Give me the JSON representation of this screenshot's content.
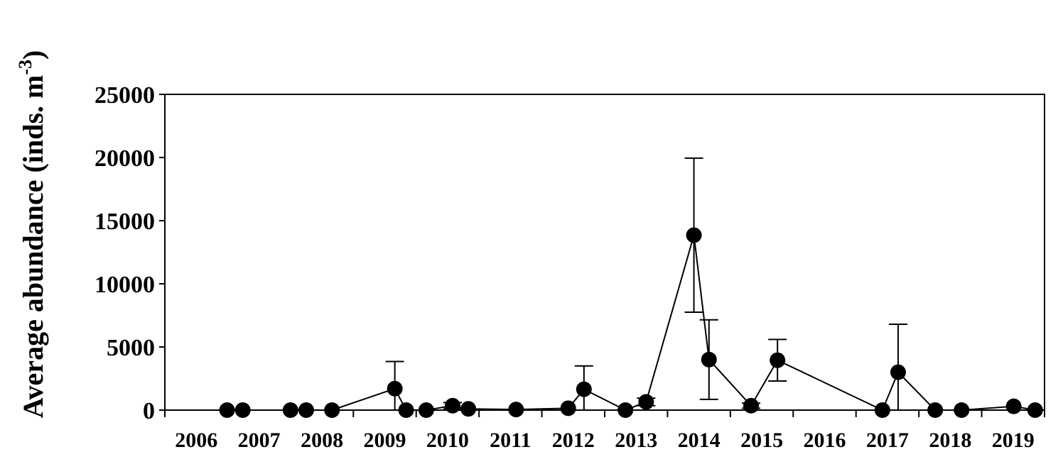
{
  "chart_data": {
    "type": "line",
    "y_label": "Average abundance (inds. m",
    "y_label_sup": "-3",
    "y_label_end": ")",
    "categories": [
      "2006",
      "2007",
      "2008",
      "2009",
      "2010",
      "2011",
      "2012",
      "2013",
      "2014",
      "2015",
      "2016",
      "2017",
      "2018",
      "2019"
    ],
    "xlim": [
      2006,
      2020
    ],
    "ylim": [
      0,
      25000
    ],
    "yticks": [
      0,
      5000,
      10000,
      15000,
      20000,
      25000
    ],
    "color": "#000000",
    "series": [
      {
        "x": [
          2006.99,
          2007.24,
          2008.0,
          2008.25,
          2008.66,
          2009.66,
          2009.84,
          2010.16,
          2010.58,
          2010.83,
          2011.59,
          2012.42,
          2012.67,
          2013.33,
          2013.66,
          2014.42,
          2014.66,
          2015.33,
          2015.75,
          2017.42,
          2017.67,
          2018.26,
          2018.68,
          2019.51,
          2019.85
        ],
        "values": [
          0,
          0,
          0,
          0,
          0,
          1700,
          0,
          0,
          350,
          100,
          50,
          150,
          1650,
          0,
          650,
          13850,
          4000,
          350,
          3950,
          0,
          3000,
          0,
          0,
          300,
          0
        ],
        "errors": [
          null,
          null,
          null,
          null,
          null,
          2150,
          null,
          null,
          250,
          null,
          null,
          null,
          1850,
          null,
          300,
          6100,
          3150,
          200,
          1650,
          null,
          3800,
          null,
          null,
          null,
          null
        ]
      }
    ]
  }
}
